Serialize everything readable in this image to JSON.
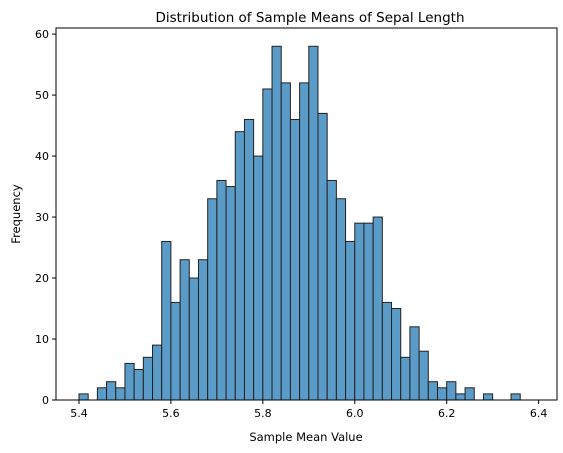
{
  "chart_data": {
    "type": "bar",
    "title": "Distribution of Sample Means of Sepal Length",
    "xlabel": "Sample Mean Value",
    "ylabel": "Frequency",
    "xlim": [
      5.35,
      6.44
    ],
    "ylim": [
      0,
      61
    ],
    "xticks": [
      "5.4",
      "5.6",
      "5.8",
      "6.0",
      "6.2",
      "6.4"
    ],
    "yticks": [
      "0",
      "10",
      "20",
      "30",
      "40",
      "50",
      "60"
    ],
    "bin_start": 5.4,
    "bin_width": 0.02,
    "values": [
      1,
      0,
      2,
      3,
      2,
      6,
      5,
      7,
      9,
      26,
      16,
      23,
      20,
      23,
      33,
      36,
      35,
      44,
      46,
      40,
      51,
      58,
      52,
      46,
      52,
      58,
      47,
      36,
      33,
      26,
      29,
      29,
      30,
      16,
      15,
      7,
      12,
      8,
      3,
      2,
      3,
      1,
      2,
      0,
      1,
      0,
      0,
      1
    ],
    "bar_color": "#5b9bc8",
    "grid": false
  }
}
